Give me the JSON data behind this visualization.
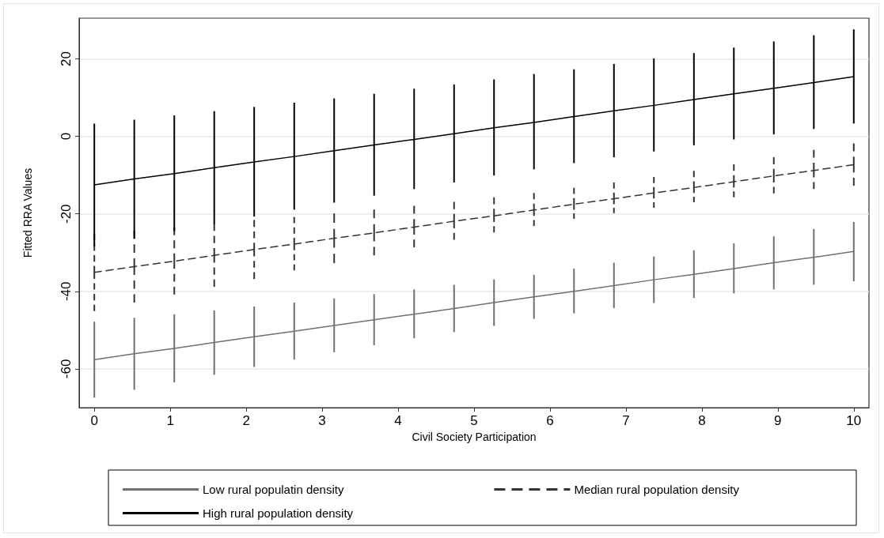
{
  "chart_data": {
    "type": "line",
    "xlabel": "Civil Society Participation",
    "ylabel": "Fitted RRA Values",
    "x": [
      0,
      0.526,
      1.053,
      1.579,
      2.105,
      2.632,
      3.158,
      3.684,
      4.211,
      4.737,
      5.263,
      5.789,
      6.316,
      6.842,
      7.368,
      7.895,
      8.421,
      8.947,
      9.474,
      10
    ],
    "xlim": [
      -0.2,
      10.2
    ],
    "xticks": [
      0,
      1,
      2,
      3,
      4,
      5,
      6,
      7,
      8,
      9,
      10
    ],
    "ylim": [
      -70,
      30.5
    ],
    "yticks": [
      -60,
      -40,
      -20,
      0,
      20
    ],
    "grid": "y",
    "legend": "bottom",
    "marker": "none",
    "series": [
      {
        "name": "Low rural populatin density",
        "color": "#707070",
        "line_style": "solid",
        "values": [
          -57.6,
          -56.1,
          -54.7,
          -53.2,
          -51.7,
          -50.3,
          -48.8,
          -47.3,
          -45.9,
          -44.4,
          -42.9,
          -41.4,
          -40.0,
          -38.5,
          -37.0,
          -35.6,
          -34.1,
          -32.6,
          -31.2,
          -29.7
        ],
        "errors": [
          [
            -67.4,
            -47.8
          ],
          [
            -65.4,
            -46.8
          ],
          [
            -63.5,
            -45.9
          ],
          [
            -61.5,
            -44.9
          ],
          [
            -59.5,
            -43.9
          ],
          [
            -57.6,
            -42.9
          ],
          [
            -55.7,
            -41.8
          ],
          [
            -53.9,
            -40.7
          ],
          [
            -52.1,
            -39.5
          ],
          [
            -50.5,
            -38.3
          ],
          [
            -48.9,
            -36.9
          ],
          [
            -47.1,
            -35.7
          ],
          [
            -45.7,
            -34.1
          ],
          [
            -44.3,
            -32.6
          ],
          [
            -43.0,
            -31.0
          ],
          [
            -41.7,
            -29.4
          ],
          [
            -40.5,
            -27.6
          ],
          [
            -39.5,
            -25.8
          ],
          [
            -38.3,
            -23.9
          ],
          [
            -37.4,
            -22.1
          ]
        ]
      },
      {
        "name": "Median rural population density",
        "color": "#333333",
        "line_style": "dashed",
        "values": [
          -35.1,
          -33.6,
          -32.2,
          -30.7,
          -29.2,
          -27.8,
          -26.3,
          -24.9,
          -23.4,
          -21.9,
          -20.5,
          -19.0,
          -17.5,
          -16.1,
          -14.6,
          -13.2,
          -11.7,
          -10.2,
          -8.8,
          -7.3
        ],
        "errors": [
          [
            -45.1,
            -25.1
          ],
          [
            -42.9,
            -24.3
          ],
          [
            -40.8,
            -23.5
          ],
          [
            -38.8,
            -22.5
          ],
          [
            -36.8,
            -21.6
          ],
          [
            -34.6,
            -20.8
          ],
          [
            -32.7,
            -19.9
          ],
          [
            -30.7,
            -18.9
          ],
          [
            -28.6,
            -17.9
          ],
          [
            -26.7,
            -16.9
          ],
          [
            -24.8,
            -15.7
          ],
          [
            -23.1,
            -14.6
          ],
          [
            -21.3,
            -13.3
          ],
          [
            -19.8,
            -11.9
          ],
          [
            -18.4,
            -10.5
          ],
          [
            -17.0,
            -8.9
          ],
          [
            -15.7,
            -7.2
          ],
          [
            -14.7,
            -5.4
          ],
          [
            -13.6,
            -3.5
          ],
          [
            -12.7,
            -1.8
          ]
        ]
      },
      {
        "name": "High rural population density",
        "color": "#000000",
        "line_style": "solid",
        "values": [
          -12.5,
          -11.0,
          -9.6,
          -8.1,
          -6.6,
          -5.2,
          -3.7,
          -2.2,
          -0.8,
          0.7,
          2.2,
          3.6,
          5.1,
          6.6,
          8.0,
          9.5,
          11.0,
          12.4,
          13.9,
          15.4
        ],
        "errors": [
          [
            -28.4,
            3.3
          ],
          [
            -26.4,
            4.3
          ],
          [
            -24.5,
            5.4
          ],
          [
            -22.6,
            6.5
          ],
          [
            -20.7,
            7.6
          ],
          [
            -18.9,
            8.7
          ],
          [
            -17.1,
            9.8
          ],
          [
            -15.3,
            11.0
          ],
          [
            -13.6,
            12.3
          ],
          [
            -11.9,
            13.4
          ],
          [
            -10.1,
            14.7
          ],
          [
            -8.5,
            16.1
          ],
          [
            -6.9,
            17.3
          ],
          [
            -5.4,
            18.7
          ],
          [
            -3.9,
            20.1
          ],
          [
            -2.3,
            21.5
          ],
          [
            -0.8,
            22.9
          ],
          [
            0.5,
            24.5
          ],
          [
            1.9,
            26.1
          ],
          [
            3.3,
            27.6
          ]
        ]
      }
    ]
  }
}
